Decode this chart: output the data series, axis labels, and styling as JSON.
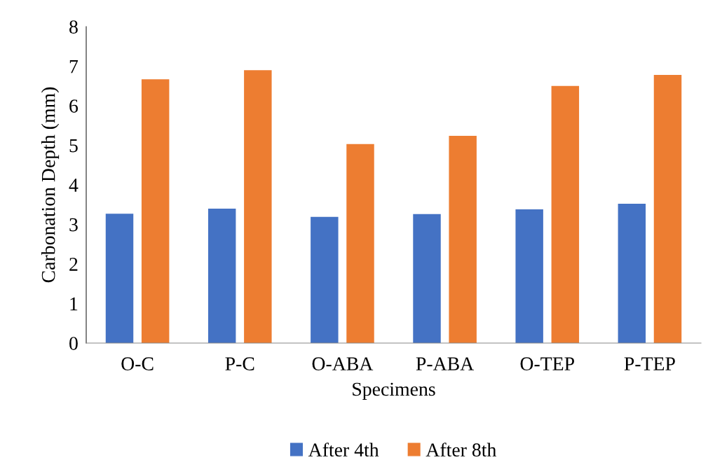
{
  "chart_data": {
    "type": "bar",
    "xlabel": "Specimens",
    "ylabel": "Carbonation Depth (mm)",
    "categories": [
      "O-C",
      "P-C",
      "O-ABA",
      "P-ABA",
      "O-TEP",
      "P-TEP"
    ],
    "series": [
      {
        "name": "After 4th",
        "color": "#4472c4",
        "values": [
          3.27,
          3.4,
          3.19,
          3.26,
          3.38,
          3.52
        ]
      },
      {
        "name": "After 8th",
        "color": "#ed7d31",
        "values": [
          6.67,
          6.9,
          5.03,
          5.24,
          6.5,
          6.78
        ]
      }
    ],
    "ylim": [
      0,
      8
    ],
    "yticks": [
      0,
      1,
      2,
      3,
      4,
      5,
      6,
      7,
      8
    ],
    "grid": false,
    "legend": "bottom"
  }
}
